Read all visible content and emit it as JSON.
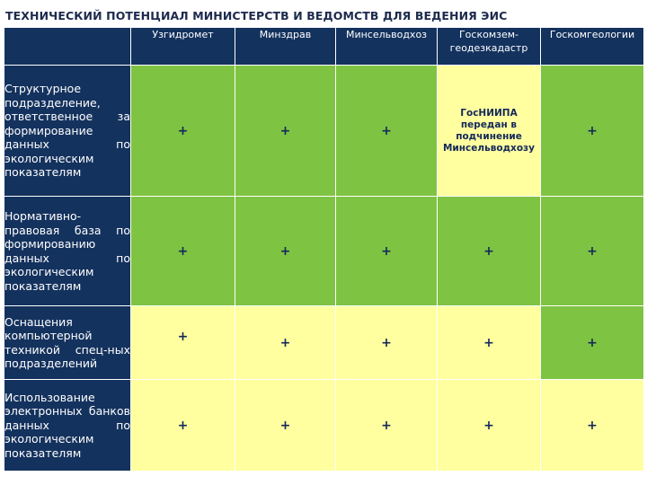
{
  "title": "ТЕХНИЧЕСКИЙ  ПОТЕНЦИАЛ МИНИСТЕРСТВ И ВЕДОМСТВ ДЛЯ ВЕДЕНИЯ ЭИС",
  "columns": [
    "Узгидромет",
    "Минздрав",
    "Минсельводхоз",
    "Госкомзем-геодезкадастр",
    "Госкомгеологии"
  ],
  "rows": [
    {
      "label": "Структурное подразделение, ответственное за формирование данных по экологическим показателям",
      "cells": [
        "+",
        "+",
        "+",
        "ГосНИИПА передан в подчинение Минсельводхозу",
        "+"
      ]
    },
    {
      "label": "Нормативно-правовая база по формированию данных по экологическим показателям",
      "cells": [
        "+",
        "+",
        "+",
        "+",
        "+"
      ]
    },
    {
      "label": "Оснащения компьютерной техникой спец-ных подразделений",
      "cells": [
        "+",
        "+",
        "+",
        "+",
        "+"
      ]
    },
    {
      "label": "Использование электронных банков данных по экологическим показателям",
      "cells": [
        "+",
        "+",
        "+",
        "+",
        "+"
      ]
    }
  ],
  "colors": {
    "header_bg": "#14325e",
    "green": "#7ec342",
    "yellow": "#ffffa0",
    "text_dark": "#14285a"
  }
}
